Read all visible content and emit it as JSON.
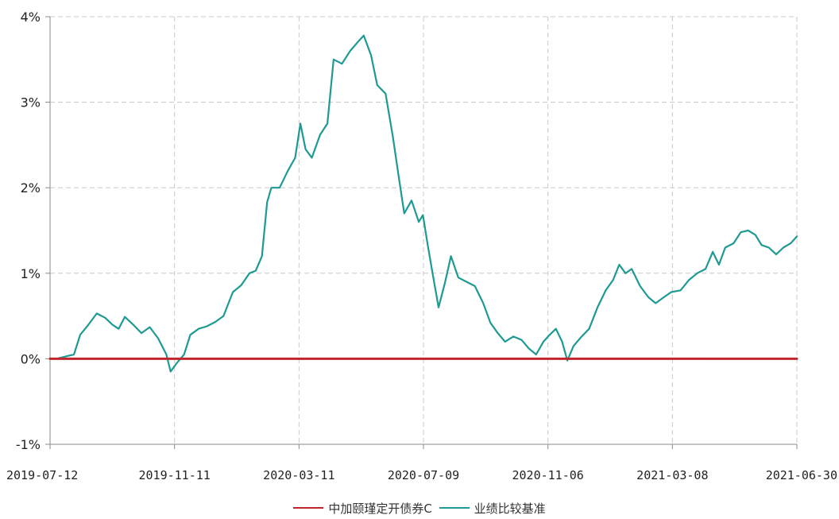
{
  "chart_data": {
    "type": "line",
    "title": "",
    "xlabel": "",
    "ylabel": "",
    "ylim": [
      -1,
      4
    ],
    "yticks": [
      -1,
      0,
      1,
      2,
      3,
      4
    ],
    "ytick_labels": [
      "-1%",
      "0%",
      "1%",
      "2%",
      "3%",
      "4%"
    ],
    "xlim": [
      "2019-07-12",
      "2021-06-30"
    ],
    "x_tick_labels": [
      "2019-07-12",
      "2019-11-11",
      "2020-03-11",
      "2020-07-09",
      "2020-11-06",
      "2021-03-08",
      "2021-06-30"
    ],
    "grid": true,
    "legend_position": "bottom",
    "series": [
      {
        "name": "中加颐瑾定开债券C",
        "color": "#c0262b",
        "points": [
          [
            "2019-07-12",
            0.0
          ],
          [
            "2021-06-30",
            0.0
          ]
        ]
      },
      {
        "name": "业绩比较基准",
        "color": "#1e9a93",
        "points": [
          [
            "2019-07-12",
            0.0
          ],
          [
            "2019-07-18",
            0.0
          ],
          [
            "2019-07-28",
            0.03
          ],
          [
            "2019-08-04",
            0.05
          ],
          [
            "2019-08-10",
            0.28
          ],
          [
            "2019-08-18",
            0.4
          ],
          [
            "2019-08-26",
            0.53
          ],
          [
            "2019-09-03",
            0.48
          ],
          [
            "2019-09-10",
            0.4
          ],
          [
            "2019-09-16",
            0.35
          ],
          [
            "2019-09-22",
            0.49
          ],
          [
            "2019-09-30",
            0.4
          ],
          [
            "2019-10-08",
            0.3
          ],
          [
            "2019-10-16",
            0.37
          ],
          [
            "2019-10-24",
            0.24
          ],
          [
            "2019-11-01",
            0.05
          ],
          [
            "2019-11-05",
            -0.15
          ],
          [
            "2019-11-11",
            -0.05
          ],
          [
            "2019-11-18",
            0.05
          ],
          [
            "2019-11-24",
            0.28
          ],
          [
            "2019-12-02",
            0.35
          ],
          [
            "2019-12-10",
            0.38
          ],
          [
            "2019-12-18",
            0.43
          ],
          [
            "2019-12-26",
            0.5
          ],
          [
            "2020-01-04",
            0.78
          ],
          [
            "2020-01-12",
            0.86
          ],
          [
            "2020-01-20",
            1.0
          ],
          [
            "2020-01-26",
            1.03
          ],
          [
            "2020-02-01",
            1.2
          ],
          [
            "2020-02-06",
            1.83
          ],
          [
            "2020-02-10",
            2.0
          ],
          [
            "2020-02-18",
            2.0
          ],
          [
            "2020-02-26",
            2.2
          ],
          [
            "2020-03-04",
            2.35
          ],
          [
            "2020-03-09",
            2.75
          ],
          [
            "2020-03-14",
            2.45
          ],
          [
            "2020-03-20",
            2.35
          ],
          [
            "2020-03-28",
            2.62
          ],
          [
            "2020-04-04",
            2.75
          ],
          [
            "2020-04-10",
            3.5
          ],
          [
            "2020-04-18",
            3.45
          ],
          [
            "2020-04-26",
            3.6
          ],
          [
            "2020-05-03",
            3.7
          ],
          [
            "2020-05-09",
            3.78
          ],
          [
            "2020-05-16",
            3.55
          ],
          [
            "2020-05-22",
            3.2
          ],
          [
            "2020-05-30",
            3.1
          ],
          [
            "2020-06-06",
            2.6
          ],
          [
            "2020-06-12",
            2.1
          ],
          [
            "2020-06-17",
            1.7
          ],
          [
            "2020-06-24",
            1.85
          ],
          [
            "2020-07-01",
            1.6
          ],
          [
            "2020-07-05",
            1.68
          ],
          [
            "2020-07-10",
            1.3
          ],
          [
            "2020-07-15",
            0.95
          ],
          [
            "2020-07-20",
            0.6
          ],
          [
            "2020-07-26",
            0.88
          ],
          [
            "2020-08-01",
            1.2
          ],
          [
            "2020-08-08",
            0.95
          ],
          [
            "2020-08-16",
            0.9
          ],
          [
            "2020-08-24",
            0.85
          ],
          [
            "2020-09-01",
            0.65
          ],
          [
            "2020-09-08",
            0.42
          ],
          [
            "2020-09-15",
            0.3
          ],
          [
            "2020-09-22",
            0.2
          ],
          [
            "2020-09-30",
            0.26
          ],
          [
            "2020-10-08",
            0.22
          ],
          [
            "2020-10-15",
            0.12
          ],
          [
            "2020-10-22",
            0.05
          ],
          [
            "2020-10-29",
            0.2
          ],
          [
            "2020-11-04",
            0.28
          ],
          [
            "2020-11-10",
            0.35
          ],
          [
            "2020-11-16",
            0.2
          ],
          [
            "2020-11-21",
            -0.02
          ],
          [
            "2020-11-27",
            0.15
          ],
          [
            "2020-12-04",
            0.25
          ],
          [
            "2020-12-12",
            0.35
          ],
          [
            "2020-12-20",
            0.6
          ],
          [
            "2020-12-28",
            0.8
          ],
          [
            "2021-01-04",
            0.92
          ],
          [
            "2021-01-10",
            1.1
          ],
          [
            "2021-01-16",
            1.0
          ],
          [
            "2021-01-22",
            1.05
          ],
          [
            "2021-01-30",
            0.85
          ],
          [
            "2021-02-07",
            0.72
          ],
          [
            "2021-02-14",
            0.65
          ],
          [
            "2021-02-22",
            0.72
          ],
          [
            "2021-03-01",
            0.78
          ],
          [
            "2021-03-10",
            0.8
          ],
          [
            "2021-03-18",
            0.92
          ],
          [
            "2021-03-26",
            1.0
          ],
          [
            "2021-04-03",
            1.05
          ],
          [
            "2021-04-10",
            1.25
          ],
          [
            "2021-04-16",
            1.1
          ],
          [
            "2021-04-22",
            1.3
          ],
          [
            "2021-04-30",
            1.35
          ],
          [
            "2021-05-07",
            1.48
          ],
          [
            "2021-05-14",
            1.5
          ],
          [
            "2021-05-21",
            1.45
          ],
          [
            "2021-05-27",
            1.33
          ],
          [
            "2021-06-03",
            1.3
          ],
          [
            "2021-06-10",
            1.22
          ],
          [
            "2021-06-17",
            1.3
          ],
          [
            "2021-06-24",
            1.35
          ],
          [
            "2021-06-30",
            1.43
          ]
        ]
      }
    ]
  }
}
